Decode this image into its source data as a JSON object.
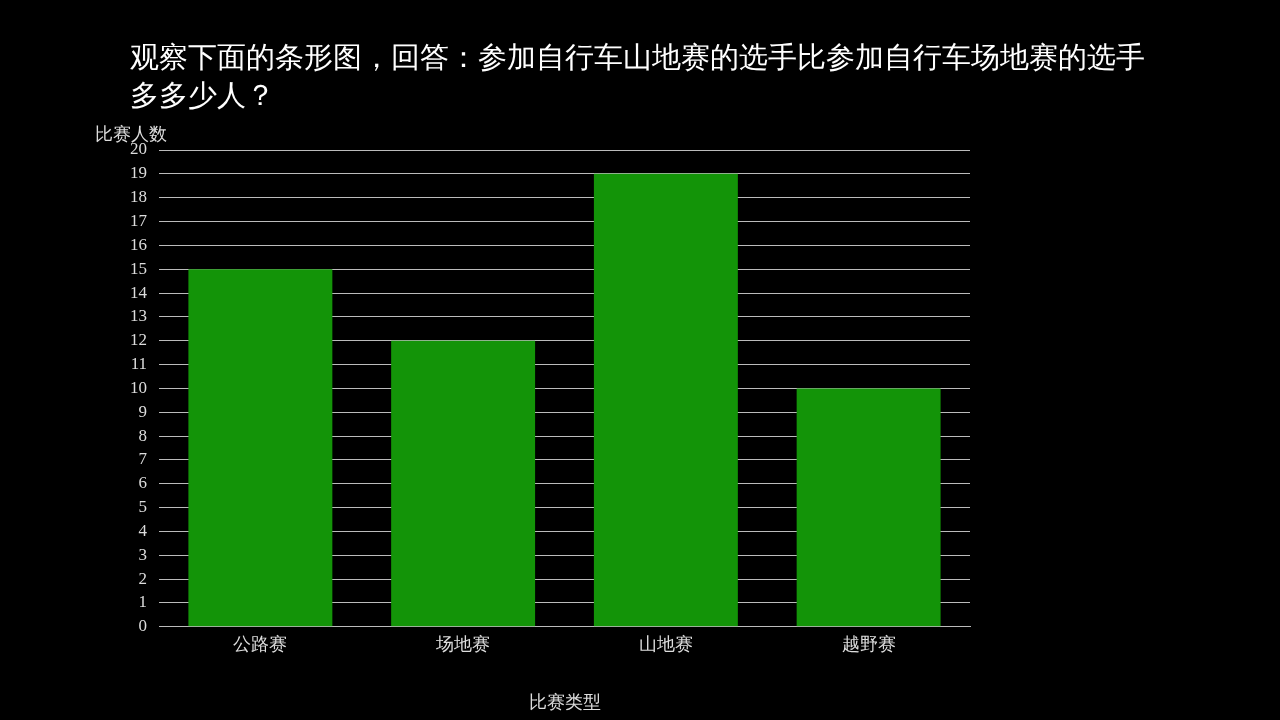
{
  "chart_data": {
    "type": "bar",
    "title": "观察下面的条形图，回答：参加自行车山地赛的选手比参加自行车场地赛的选手多多少人？",
    "xlabel": "比赛类型",
    "ylabel": "比赛人数",
    "categories": [
      "公路赛",
      "场地赛",
      "山地赛",
      "越野赛"
    ],
    "values": [
      15,
      12,
      19,
      10
    ],
    "color": "#139408",
    "ylim": [
      0,
      20
    ],
    "yticks": [
      0,
      1,
      2,
      3,
      4,
      5,
      6,
      7,
      8,
      9,
      10,
      11,
      12,
      13,
      14,
      15,
      16,
      17,
      18,
      19,
      20
    ],
    "grid": "y",
    "legend": false
  }
}
